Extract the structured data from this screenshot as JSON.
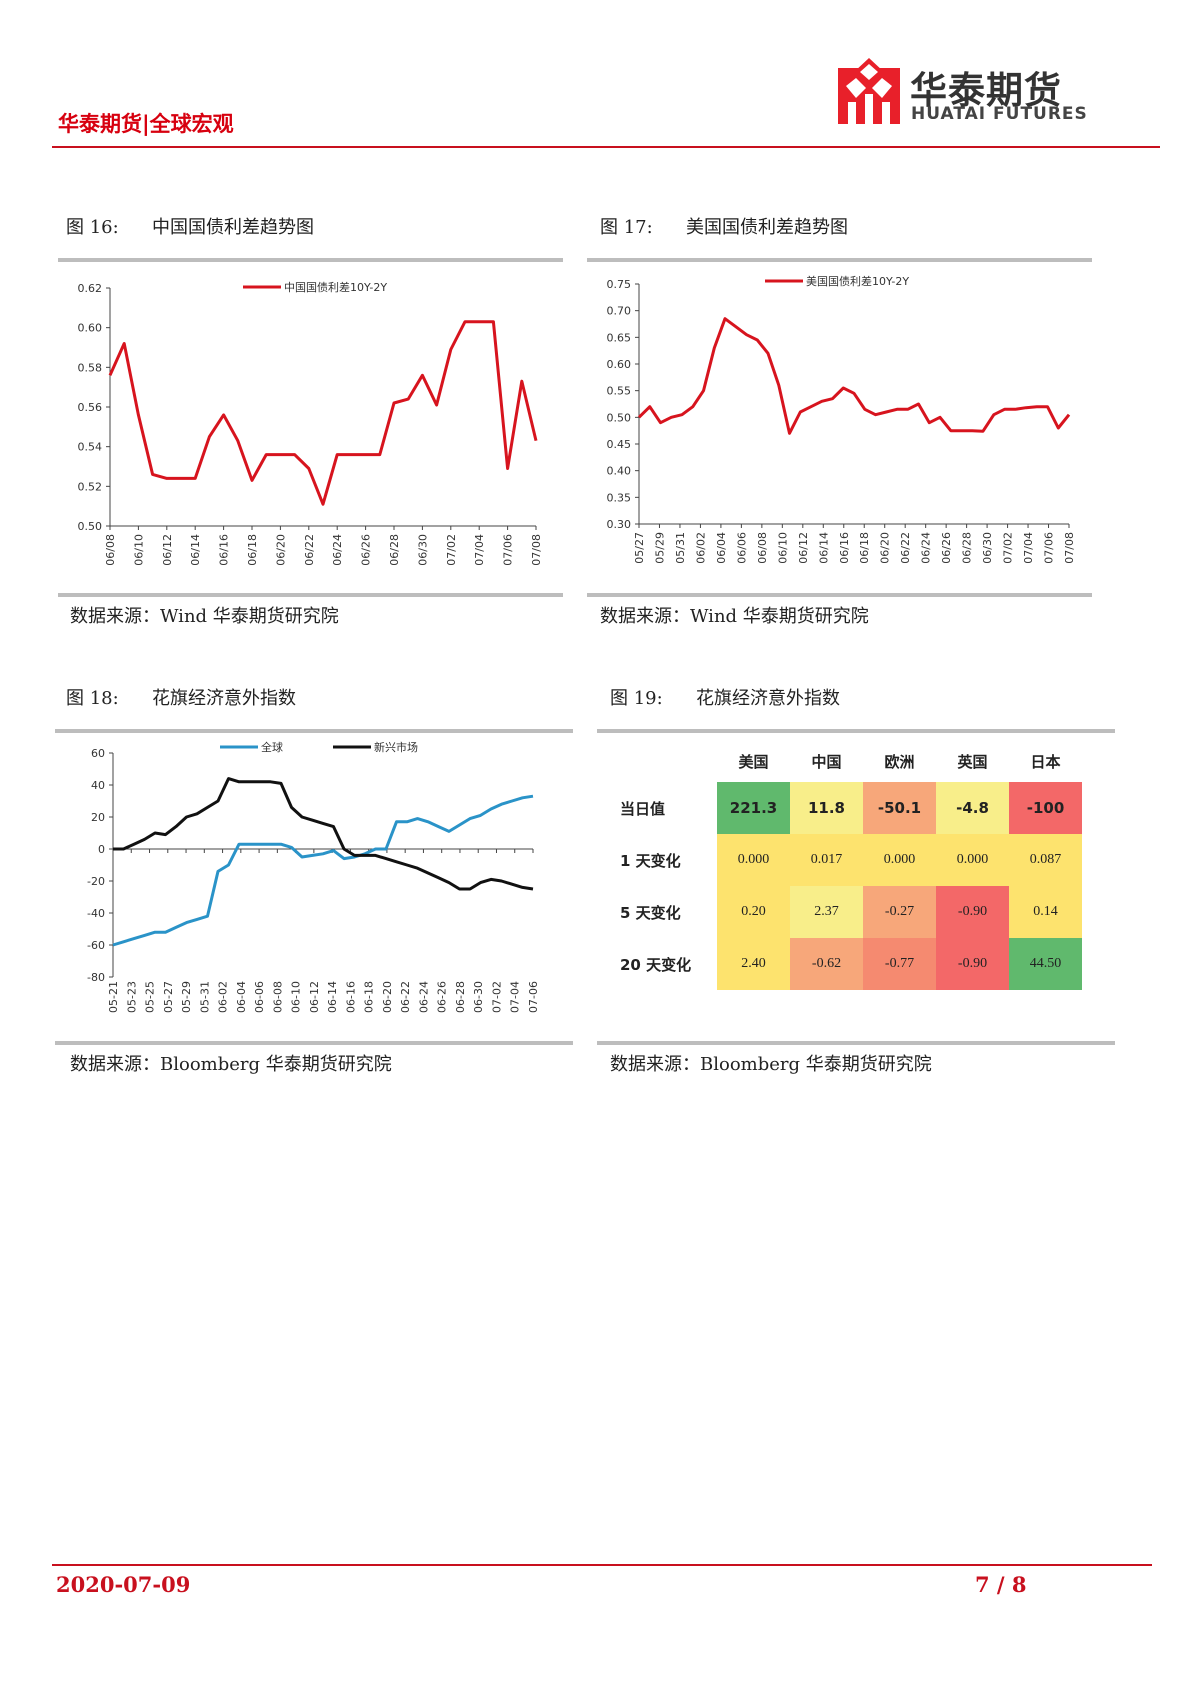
{
  "header": {
    "title": "华泰期货|全球宏观",
    "logo_cn": "华泰期货",
    "logo_en": "HUATAI FUTURES",
    "brand_color": "#d7000f"
  },
  "figures": [
    {
      "label": "图 16:",
      "title": "中国国债利差趋势图",
      "source": "数据来源：Wind 华泰期货研究院"
    },
    {
      "label": "图 17:",
      "title": "美国国债利差趋势图",
      "source": "数据来源：Wind 华泰期货研究院"
    },
    {
      "label": "图 18:",
      "title": "花旗经济意外指数",
      "source": "数据来源：Bloomberg 华泰期货研究院"
    },
    {
      "label": "图 19:",
      "title": "花旗经济意外指数",
      "source": "数据来源：Bloomberg 华泰期货研究院"
    }
  ],
  "chart_data": [
    {
      "type": "line",
      "legend": "中国国债利差10Y-2Y",
      "color": "#d7141e",
      "ylim": [
        0.5,
        0.62
      ],
      "yticks": [
        "0.50",
        "0.52",
        "0.54",
        "0.56",
        "0.58",
        "0.60",
        "0.62"
      ],
      "xticks": [
        "06/08",
        "06/10",
        "06/12",
        "06/14",
        "06/16",
        "06/18",
        "06/20",
        "06/22",
        "06/24",
        "06/26",
        "06/28",
        "06/30",
        "07/02",
        "07/04",
        "07/06",
        "07/08"
      ],
      "values": [
        0.576,
        0.592,
        0.556,
        0.526,
        0.524,
        0.524,
        0.524,
        0.545,
        0.556,
        0.543,
        0.523,
        0.536,
        0.536,
        0.536,
        0.529,
        0.511,
        0.536,
        0.536,
        0.536,
        0.536,
        0.562,
        0.564,
        0.576,
        0.561,
        0.589,
        0.603,
        0.603,
        0.603,
        0.529,
        0.573,
        0.543
      ]
    },
    {
      "type": "line",
      "legend": "美国国债利差10Y-2Y",
      "color": "#d7141e",
      "ylim": [
        0.3,
        0.75
      ],
      "yticks": [
        "0.30",
        "0.35",
        "0.40",
        "0.45",
        "0.50",
        "0.55",
        "0.60",
        "0.65",
        "0.70",
        "0.75"
      ],
      "xticks": [
        "05/27",
        "05/29",
        "05/31",
        "06/02",
        "06/04",
        "06/06",
        "06/08",
        "06/10",
        "06/12",
        "06/14",
        "06/16",
        "06/18",
        "06/20",
        "06/22",
        "06/24",
        "06/26",
        "06/28",
        "06/30",
        "07/02",
        "07/04",
        "07/06",
        "07/08"
      ],
      "values": [
        0.5,
        0.52,
        0.49,
        0.5,
        0.505,
        0.52,
        0.55,
        0.63,
        0.685,
        0.67,
        0.655,
        0.645,
        0.62,
        0.56,
        0.47,
        0.51,
        0.52,
        0.53,
        0.535,
        0.555,
        0.545,
        0.515,
        0.505,
        0.51,
        0.515,
        0.515,
        0.525,
        0.49,
        0.5,
        0.475,
        0.475,
        0.475,
        0.474,
        0.505,
        0.515,
        0.515,
        0.518,
        0.52,
        0.52,
        0.48,
        0.505
      ]
    },
    {
      "type": "line",
      "ylim": [
        -80,
        60
      ],
      "yticks": [
        "-80",
        "-60",
        "-40",
        "-20",
        "0",
        "20",
        "40",
        "60"
      ],
      "xticks": [
        "05-21",
        "05-23",
        "05-25",
        "05-27",
        "05-29",
        "05-31",
        "06-02",
        "06-04",
        "06-06",
        "06-08",
        "06-10",
        "06-12",
        "06-14",
        "06-16",
        "06-18",
        "06-20",
        "06-22",
        "06-24",
        "06-26",
        "06-28",
        "06-30",
        "07-02",
        "07-04",
        "07-06"
      ],
      "series": [
        {
          "name": "全球",
          "color": "#2a93c8",
          "values": [
            -60,
            -58,
            -56,
            -54,
            -52,
            -52,
            -49,
            -46,
            -44,
            -42,
            -14,
            -10,
            3,
            3,
            3,
            3,
            3,
            1,
            -5,
            -4,
            -3,
            -1,
            -6,
            -5,
            -3,
            0,
            0,
            17,
            17,
            19,
            17,
            14,
            11,
            15,
            19,
            21,
            25,
            28,
            30,
            32,
            33
          ]
        },
        {
          "name": "新兴市场",
          "color": "#111111",
          "values": [
            0,
            0,
            3,
            6,
            10,
            9,
            14,
            20,
            22,
            26,
            30,
            44,
            42,
            42,
            42,
            42,
            41,
            26,
            20,
            18,
            16,
            14,
            0,
            -4,
            -4,
            -4,
            -6,
            -8,
            -10,
            -12,
            -15,
            -18,
            -21,
            -25,
            -25,
            -21,
            -19,
            -20,
            -22,
            -24,
            -25
          ]
        }
      ]
    },
    {
      "type": "table",
      "columns": [
        "美国",
        "中国",
        "欧洲",
        "英国",
        "日本"
      ],
      "rows": [
        {
          "label": "当日值",
          "values": [
            "221.3",
            "11.8",
            "-50.1",
            "-4.8",
            "-100"
          ],
          "colors": [
            "#60b96d",
            "#f8ee8a",
            "#f7a77a",
            "#f8ee8a",
            "#f36868"
          ]
        },
        {
          "label": "1 天变化",
          "values": [
            "0.000",
            "0.017",
            "0.000",
            "0.000",
            "0.087"
          ],
          "colors": [
            "#fde36e",
            "#fde36e",
            "#fde36e",
            "#fde36e",
            "#fde36e"
          ]
        },
        {
          "label": "5 天变化",
          "values": [
            "0.20",
            "2.37",
            "-0.27",
            "-0.90",
            "0.14"
          ],
          "colors": [
            "#fde36e",
            "#f8ee8a",
            "#f7a77a",
            "#f36868",
            "#fde36e"
          ]
        },
        {
          "label": "20 天变化",
          "values": [
            "2.40",
            "-0.62",
            "-0.77",
            "-0.90",
            "44.50"
          ],
          "colors": [
            "#fde36e",
            "#f7a77a",
            "#f58a70",
            "#f36868",
            "#60b96d"
          ]
        }
      ]
    }
  ],
  "footer": {
    "date": "2020-07-09",
    "page": "7 / 8"
  }
}
